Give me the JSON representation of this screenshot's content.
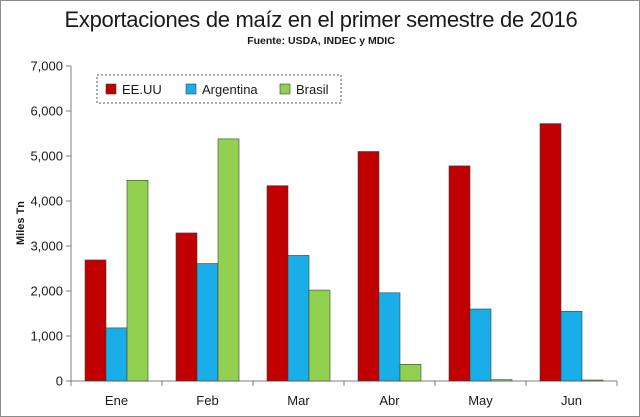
{
  "chart_data": {
    "type": "bar",
    "title": "Exportaciones de maíz en el primer semestre de 2016",
    "subtitle": "Fuente: USDA, INDEC y MDIC",
    "xlabel": "",
    "ylabel": "Miles Tn",
    "ylim": [
      0,
      7000
    ],
    "yticks": [
      0,
      1000,
      2000,
      3000,
      4000,
      5000,
      6000,
      7000
    ],
    "ytick_labels": [
      "0",
      "1,000",
      "2,000",
      "3,000",
      "4,000",
      "5,000",
      "6,000",
      "7,000"
    ],
    "grid": false,
    "legend_position": "top-left",
    "categories": [
      "Ene",
      "Feb",
      "Mar",
      "Abr",
      "May",
      "Jun"
    ],
    "series": [
      {
        "name": "EE.UU",
        "color": "#c00000",
        "values": [
          2690,
          3290,
          4340,
          5100,
          4780,
          5720
        ]
      },
      {
        "name": "Argentina",
        "color": "#19aee8",
        "values": [
          1180,
          2610,
          2790,
          1960,
          1600,
          1550
        ]
      },
      {
        "name": "Brasil",
        "color": "#92d050",
        "values": [
          4460,
          5380,
          2020,
          370,
          30,
          10
        ]
      }
    ]
  }
}
